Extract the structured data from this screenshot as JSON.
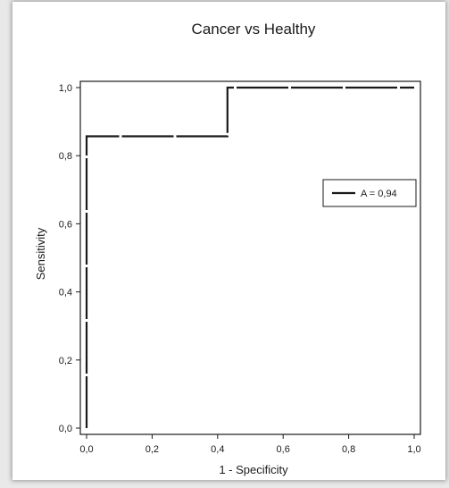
{
  "chart_data": {
    "type": "line",
    "title": "Cancer vs Healthy",
    "xlabel": "1 - Specificity",
    "ylabel": "Sensitivity",
    "xlim": [
      0,
      1
    ],
    "ylim": [
      0,
      1
    ],
    "xticks": [
      "0,0",
      "0,2",
      "0,4",
      "0,6",
      "0,8",
      "1,0"
    ],
    "yticks": [
      "0,0",
      "0,2",
      "0,4",
      "0,6",
      "0,8",
      "1,0"
    ],
    "grid": false,
    "legend_position": "right",
    "series": [
      {
        "name": "A = 0,94",
        "color": "#1a1a1a",
        "x": [
          0,
          0,
          0,
          0,
          0,
          0,
          0,
          0.14,
          0.29,
          0.43,
          0.43,
          0.57,
          0.71,
          0.86,
          1.0
        ],
        "y": [
          0,
          0.14,
          0.29,
          0.43,
          0.57,
          0.71,
          0.857,
          0.857,
          0.857,
          0.857,
          1.0,
          1.0,
          1.0,
          1.0,
          1.0
        ]
      }
    ]
  }
}
